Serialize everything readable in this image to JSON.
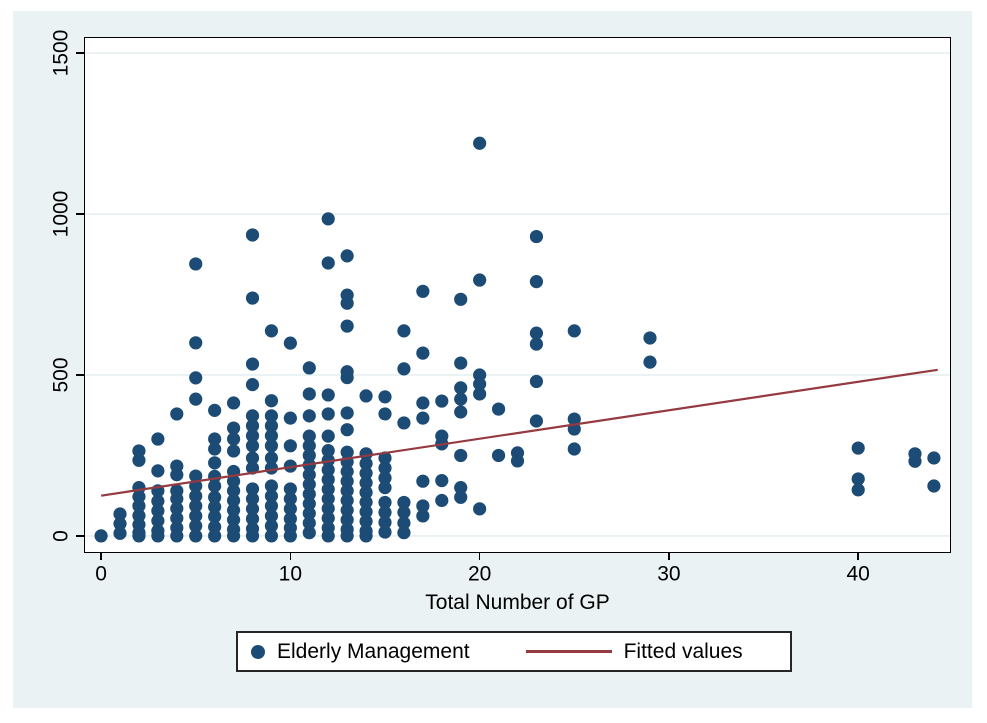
{
  "figure": {
    "outer_background": "#eaf2f3",
    "plot_background": "#ffffff",
    "grid_color": "#e6eff1",
    "axis_color": "#000000"
  },
  "chart_data": {
    "type": "scatter",
    "title": "",
    "xlabel": "Total Number of GP",
    "ylabel": "",
    "xlim": [
      -0.85,
      44.85
    ],
    "ylim": [
      -50,
      1547
    ],
    "x_ticks": [
      0,
      10,
      20,
      30,
      40
    ],
    "y_ticks": [
      0,
      500,
      1000,
      1500
    ],
    "grid": "horizontal",
    "legend_position": "bottom-center",
    "series": [
      {
        "name": "Elderly Management",
        "type": "scatter",
        "color": "#1c4c75",
        "marker": "circle",
        "points": [
          [
            0,
            0
          ],
          [
            1,
            8
          ],
          [
            1,
            38
          ],
          [
            1,
            68
          ],
          [
            2,
            0
          ],
          [
            2,
            10
          ],
          [
            2,
            35
          ],
          [
            2,
            63
          ],
          [
            2,
            93
          ],
          [
            2,
            122
          ],
          [
            2,
            150
          ],
          [
            2,
            235
          ],
          [
            2,
            264
          ],
          [
            3,
            0
          ],
          [
            3,
            16
          ],
          [
            3,
            47
          ],
          [
            3,
            78
          ],
          [
            3,
            108
          ],
          [
            3,
            140
          ],
          [
            3,
            202
          ],
          [
            3,
            301
          ],
          [
            4,
            0
          ],
          [
            4,
            25
          ],
          [
            4,
            55
          ],
          [
            4,
            85
          ],
          [
            4,
            115
          ],
          [
            4,
            140
          ],
          [
            4,
            190
          ],
          [
            4,
            217
          ],
          [
            4,
            379
          ],
          [
            5,
            0
          ],
          [
            5,
            31
          ],
          [
            5,
            62
          ],
          [
            5,
            93
          ],
          [
            5,
            124
          ],
          [
            5,
            155
          ],
          [
            5,
            186
          ],
          [
            5,
            425
          ],
          [
            5,
            491
          ],
          [
            5,
            600
          ],
          [
            5,
            845
          ],
          [
            6,
            0
          ],
          [
            6,
            28
          ],
          [
            6,
            60
          ],
          [
            6,
            90
          ],
          [
            6,
            120
          ],
          [
            6,
            155
          ],
          [
            6,
            185
          ],
          [
            6,
            227
          ],
          [
            6,
            270
          ],
          [
            6,
            301
          ],
          [
            6,
            390
          ],
          [
            7,
            0
          ],
          [
            7,
            20
          ],
          [
            7,
            50
          ],
          [
            7,
            80
          ],
          [
            7,
            110
          ],
          [
            7,
            140
          ],
          [
            7,
            170
          ],
          [
            7,
            200
          ],
          [
            7,
            264
          ],
          [
            7,
            301
          ],
          [
            7,
            335
          ],
          [
            7,
            413
          ],
          [
            8,
            0
          ],
          [
            8,
            22
          ],
          [
            8,
            53
          ],
          [
            8,
            84
          ],
          [
            8,
            115
          ],
          [
            8,
            146
          ],
          [
            8,
            211
          ],
          [
            8,
            242
          ],
          [
            8,
            280
          ],
          [
            8,
            311
          ],
          [
            8,
            342
          ],
          [
            8,
            373
          ],
          [
            8,
            470
          ],
          [
            8,
            534
          ],
          [
            8,
            739
          ],
          [
            8,
            935
          ],
          [
            9,
            0
          ],
          [
            9,
            31
          ],
          [
            9,
            62
          ],
          [
            9,
            93
          ],
          [
            9,
            124
          ],
          [
            9,
            155
          ],
          [
            9,
            211
          ],
          [
            9,
            242
          ],
          [
            9,
            280
          ],
          [
            9,
            311
          ],
          [
            9,
            342
          ],
          [
            9,
            373
          ],
          [
            9,
            420
          ],
          [
            9,
            637
          ],
          [
            10,
            0
          ],
          [
            10,
            25
          ],
          [
            10,
            53
          ],
          [
            10,
            84
          ],
          [
            10,
            115
          ],
          [
            10,
            146
          ],
          [
            10,
            217
          ],
          [
            10,
            280
          ],
          [
            10,
            366
          ],
          [
            10,
            599
          ],
          [
            11,
            10
          ],
          [
            11,
            40
          ],
          [
            11,
            70
          ],
          [
            11,
            100
          ],
          [
            11,
            130
          ],
          [
            11,
            160
          ],
          [
            11,
            190
          ],
          [
            11,
            220
          ],
          [
            11,
            250
          ],
          [
            11,
            280
          ],
          [
            11,
            310
          ],
          [
            11,
            373
          ],
          [
            11,
            441
          ],
          [
            11,
            522
          ],
          [
            12,
            0
          ],
          [
            12,
            25
          ],
          [
            12,
            55
          ],
          [
            12,
            85
          ],
          [
            12,
            115
          ],
          [
            12,
            145
          ],
          [
            12,
            175
          ],
          [
            12,
            205
          ],
          [
            12,
            235
          ],
          [
            12,
            265
          ],
          [
            12,
            310
          ],
          [
            12,
            379
          ],
          [
            12,
            438
          ],
          [
            12,
            848
          ],
          [
            12,
            985
          ],
          [
            13,
            0
          ],
          [
            13,
            20
          ],
          [
            13,
            50
          ],
          [
            13,
            80
          ],
          [
            13,
            110
          ],
          [
            13,
            140
          ],
          [
            13,
            170
          ],
          [
            13,
            200
          ],
          [
            13,
            230
          ],
          [
            13,
            260
          ],
          [
            13,
            330
          ],
          [
            13,
            382
          ],
          [
            13,
            492
          ],
          [
            13,
            510
          ],
          [
            13,
            652
          ],
          [
            13,
            723
          ],
          [
            13,
            748
          ],
          [
            13,
            870
          ],
          [
            14,
            0
          ],
          [
            14,
            15
          ],
          [
            14,
            45
          ],
          [
            14,
            75
          ],
          [
            14,
            105
          ],
          [
            14,
            135
          ],
          [
            14,
            165
          ],
          [
            14,
            195
          ],
          [
            14,
            225
          ],
          [
            14,
            255
          ],
          [
            14,
            435
          ],
          [
            15,
            12
          ],
          [
            15,
            42
          ],
          [
            15,
            73
          ],
          [
            15,
            104
          ],
          [
            15,
            150
          ],
          [
            15,
            180
          ],
          [
            15,
            211
          ],
          [
            15,
            242
          ],
          [
            15,
            379
          ],
          [
            15,
            432
          ],
          [
            16,
            10
          ],
          [
            16,
            40
          ],
          [
            16,
            73
          ],
          [
            16,
            104
          ],
          [
            16,
            351
          ],
          [
            16,
            519
          ],
          [
            16,
            637
          ],
          [
            17,
            62
          ],
          [
            17,
            93
          ],
          [
            17,
            170
          ],
          [
            17,
            366
          ],
          [
            17,
            413
          ],
          [
            17,
            568
          ],
          [
            17,
            760
          ],
          [
            18,
            110
          ],
          [
            18,
            172
          ],
          [
            18,
            286
          ],
          [
            18,
            310
          ],
          [
            18,
            419
          ],
          [
            19,
            120
          ],
          [
            19,
            150
          ],
          [
            19,
            250
          ],
          [
            19,
            385
          ],
          [
            19,
            425
          ],
          [
            19,
            460
          ],
          [
            19,
            537
          ],
          [
            19,
            735
          ],
          [
            20,
            84
          ],
          [
            20,
            441
          ],
          [
            20,
            472
          ],
          [
            20,
            500
          ],
          [
            20,
            795
          ],
          [
            20,
            1220
          ],
          [
            21,
            250
          ],
          [
            21,
            394
          ],
          [
            22,
            233
          ],
          [
            22,
            258
          ],
          [
            23,
            357
          ],
          [
            23,
            480
          ],
          [
            23,
            596
          ],
          [
            23,
            630
          ],
          [
            23,
            790
          ],
          [
            23,
            930
          ],
          [
            25,
            270
          ],
          [
            25,
            332
          ],
          [
            25,
            363
          ],
          [
            25,
            637
          ],
          [
            29,
            540
          ],
          [
            29,
            615
          ],
          [
            40,
            143
          ],
          [
            40,
            177
          ],
          [
            40,
            273
          ],
          [
            43,
            232
          ],
          [
            43,
            255
          ],
          [
            44,
            155
          ],
          [
            44,
            242
          ]
        ]
      },
      {
        "name": "Fitted values",
        "type": "line",
        "color": "#943a40",
        "x": [
          0,
          44.2
        ],
        "y": [
          125,
          516
        ]
      }
    ]
  },
  "legend": {
    "marker_color": "#1c4c75",
    "line_color": "#943a40",
    "items": [
      "Elderly Management",
      "Fitted values"
    ]
  }
}
